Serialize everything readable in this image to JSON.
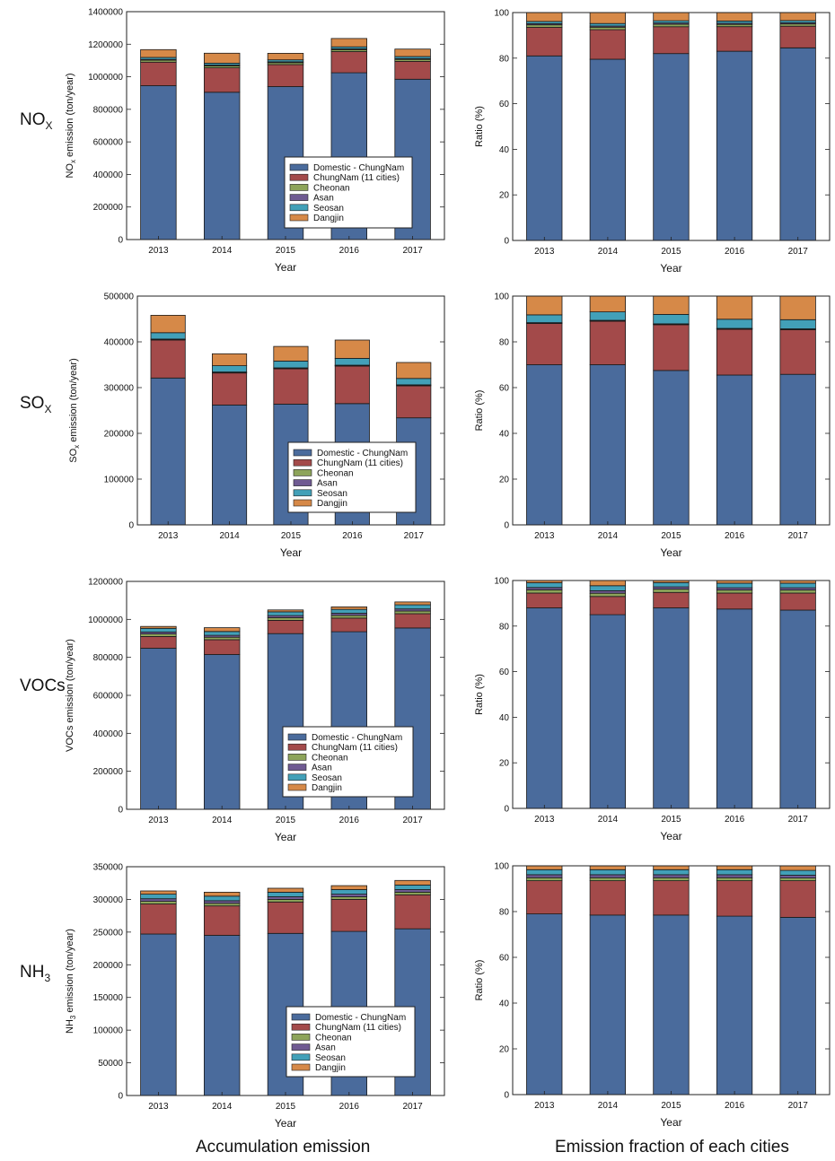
{
  "colors": {
    "Domestic - ChungNam": "#4a6b9c",
    "ChungNam (11 cities)": "#a34a4a",
    "Cheonan": "#8da45a",
    "Asan": "#6f5a92",
    "Seosan": "#42a0b8",
    "Dangjin": "#d68948",
    "frame": "#222222"
  },
  "captions": {
    "left": "Accumulation emission",
    "right": "Emission fraction of each cities"
  },
  "chart_data": [
    {
      "id": "nox-emission",
      "type": "bar",
      "stacked": true,
      "row_label": "NO",
      "row_label_sub": "X",
      "title": "",
      "xlabel": "Year",
      "ylabel": "NO",
      "ylabel_sub": "x",
      "ylabel_rest": " emission (ton/year)",
      "ylim": [
        0,
        1400000
      ],
      "yticks": [
        0,
        200000,
        400000,
        600000,
        800000,
        1000000,
        1200000,
        1400000
      ],
      "legend_position": "bottom-right",
      "legend_entries": [
        "Domestic - ChungNam",
        "ChungNam (11 cities)",
        "Cheonan",
        "Asan",
        "Seosan",
        "Dangjin"
      ],
      "categories": [
        "2013",
        "2014",
        "2015",
        "2016",
        "2017"
      ],
      "series": [
        {
          "name": "Domestic - ChungNam",
          "values": [
            945000,
            905000,
            940000,
            1025000,
            985000
          ]
        },
        {
          "name": "ChungNam (11 cities)",
          "values": [
            145000,
            150000,
            135000,
            130000,
            110000
          ]
        },
        {
          "name": "Cheonan",
          "values": [
            12000,
            12000,
            12000,
            12000,
            12000
          ]
        },
        {
          "name": "Asan",
          "values": [
            5000,
            5000,
            5000,
            5000,
            5000
          ]
        },
        {
          "name": "Seosan",
          "values": [
            12000,
            12000,
            12000,
            12000,
            12000
          ]
        },
        {
          "name": "Dangjin",
          "values": [
            48000,
            61000,
            40000,
            51000,
            46000
          ]
        }
      ]
    },
    {
      "id": "nox-ratio",
      "type": "bar",
      "stacked": true,
      "title": "",
      "xlabel": "Year",
      "ylabel": "Ratio (%)",
      "ylim": [
        0,
        100
      ],
      "yticks": [
        0,
        20,
        40,
        60,
        80,
        100
      ],
      "categories": [
        "2013",
        "2014",
        "2015",
        "2016",
        "2017"
      ],
      "series": [
        {
          "name": "Domestic - ChungNam",
          "values": [
            81,
            79.5,
            82,
            83,
            84.5
          ]
        },
        {
          "name": "ChungNam (11 cities)",
          "values": [
            12.5,
            13,
            11.8,
            10.8,
            9.5
          ]
        },
        {
          "name": "Cheonan",
          "values": [
            1.1,
            1.1,
            1.1,
            1,
            1
          ]
        },
        {
          "name": "Asan",
          "values": [
            0.5,
            0.5,
            0.5,
            0.5,
            0.5
          ]
        },
        {
          "name": "Seosan",
          "values": [
            1,
            1.1,
            1,
            1,
            1
          ]
        },
        {
          "name": "Dangjin",
          "values": [
            3.9,
            4.8,
            3.6,
            3.7,
            3.5
          ]
        }
      ]
    },
    {
      "id": "sox-emission",
      "type": "bar",
      "stacked": true,
      "row_label": "SO",
      "row_label_sub": "X",
      "title": "",
      "xlabel": "Year",
      "ylabel": "SO",
      "ylabel_sub": "x",
      "ylabel_rest": " emission (ton/year)",
      "ylim": [
        0,
        500000
      ],
      "yticks": [
        0,
        100000,
        200000,
        300000,
        400000,
        500000
      ],
      "legend_position": "bottom-right",
      "legend_entries": [
        "Domestic - ChungNam",
        "ChungNam (11 cities)",
        "Cheonan",
        "Asan",
        "Seosan",
        "Dangjin"
      ],
      "categories": [
        "2013",
        "2014",
        "2015",
        "2016",
        "2017"
      ],
      "series": [
        {
          "name": "Domestic - ChungNam",
          "values": [
            321000,
            262000,
            264000,
            265000,
            234000
          ]
        },
        {
          "name": "ChungNam (11 cities)",
          "values": [
            83000,
            70000,
            77000,
            82000,
            70000
          ]
        },
        {
          "name": "Cheonan",
          "values": [
            1000,
            1000,
            1000,
            1000,
            1000
          ]
        },
        {
          "name": "Asan",
          "values": [
            1000,
            1000,
            1000,
            1000,
            1000
          ]
        },
        {
          "name": "Seosan",
          "values": [
            14000,
            14000,
            15000,
            15000,
            14000
          ]
        },
        {
          "name": "Dangjin",
          "values": [
            38000,
            26000,
            32000,
            40000,
            35000
          ]
        }
      ]
    },
    {
      "id": "sox-ratio",
      "type": "bar",
      "stacked": true,
      "title": "",
      "xlabel": "Year",
      "ylabel": "Ratio (%)",
      "ylim": [
        0,
        100
      ],
      "yticks": [
        0,
        20,
        40,
        60,
        80,
        100
      ],
      "categories": [
        "2013",
        "2014",
        "2015",
        "2016",
        "2017"
      ],
      "series": [
        {
          "name": "Domestic - ChungNam",
          "values": [
            70,
            70,
            67.5,
            65.5,
            65.8
          ]
        },
        {
          "name": "ChungNam (11 cities)",
          "values": [
            18,
            19,
            20,
            20,
            19.5
          ]
        },
        {
          "name": "Cheonan",
          "values": [
            0.2,
            0.2,
            0.2,
            0.2,
            0.2
          ]
        },
        {
          "name": "Asan",
          "values": [
            0.2,
            0.2,
            0.2,
            0.2,
            0.2
          ]
        },
        {
          "name": "Seosan",
          "values": [
            3.4,
            3.7,
            4.1,
            4,
            4
          ]
        },
        {
          "name": "Dangjin",
          "values": [
            8.2,
            6.9,
            8,
            10.1,
            10.3
          ]
        }
      ]
    },
    {
      "id": "vocs-emission",
      "type": "bar",
      "stacked": true,
      "row_label": "VOCs",
      "title": "",
      "xlabel": "Year",
      "ylabel": "VOCs emission (ton/year)",
      "ylim": [
        0,
        1200000
      ],
      "yticks": [
        0,
        200000,
        400000,
        600000,
        800000,
        1000000,
        1200000
      ],
      "legend_position": "bottom-right",
      "legend_entries": [
        "Domestic - ChungNam",
        "ChungNam (11 cities)",
        "Cheonan",
        "Asan",
        "Seosan",
        "Dangjin"
      ],
      "categories": [
        "2013",
        "2014",
        "2015",
        "2016",
        "2017"
      ],
      "series": [
        {
          "name": "Domestic - ChungNam",
          "values": [
            848000,
            815000,
            925000,
            935000,
            955000
          ]
        },
        {
          "name": "ChungNam (11 cities)",
          "values": [
            62000,
            78000,
            70000,
            72000,
            75000
          ]
        },
        {
          "name": "Cheonan",
          "values": [
            13000,
            13000,
            14000,
            14000,
            14000
          ]
        },
        {
          "name": "Asan",
          "values": [
            10000,
            10000,
            11000,
            11000,
            11000
          ]
        },
        {
          "name": "Seosan",
          "values": [
            20000,
            20000,
            20000,
            21000,
            22000
          ]
        },
        {
          "name": "Dangjin",
          "values": [
            10000,
            20000,
            10000,
            13000,
            15000
          ]
        }
      ]
    },
    {
      "id": "vocs-ratio",
      "type": "bar",
      "stacked": true,
      "title": "",
      "xlabel": "Year",
      "ylabel": "Ratio (%)",
      "ylim": [
        0,
        100
      ],
      "yticks": [
        0,
        20,
        40,
        60,
        80,
        100
      ],
      "categories": [
        "2013",
        "2014",
        "2015",
        "2016",
        "2017"
      ],
      "series": [
        {
          "name": "Domestic - ChungNam",
          "values": [
            88,
            85,
            88,
            87.5,
            87
          ]
        },
        {
          "name": "ChungNam (11 cities)",
          "values": [
            6.5,
            8,
            6.8,
            7,
            7.5
          ]
        },
        {
          "name": "Cheonan",
          "values": [
            1.4,
            1.4,
            1.4,
            1.3,
            1.3
          ]
        },
        {
          "name": "Asan",
          "values": [
            1,
            1.1,
            1,
            1,
            1
          ]
        },
        {
          "name": "Seosan",
          "values": [
            2.1,
            2.2,
            1.9,
            2,
            2
          ]
        },
        {
          "name": "Dangjin",
          "values": [
            1,
            2.3,
            0.9,
            1.2,
            1.2
          ]
        }
      ]
    },
    {
      "id": "nh3-emission",
      "type": "bar",
      "stacked": true,
      "row_label": "NH",
      "row_label_sub": "3",
      "title": "",
      "xlabel": "Year",
      "ylabel": "NH",
      "ylabel_sub": "3",
      "ylabel_rest": " emission (ton/year)",
      "ylim": [
        0,
        350000
      ],
      "yticks": [
        0,
        50000,
        100000,
        150000,
        200000,
        250000,
        300000,
        350000
      ],
      "legend_position": "bottom-right",
      "legend_entries": [
        "Domestic - ChungNam",
        "ChungNam (11 cities)",
        "Cheonan",
        "Asan",
        "Seosan",
        "Dangjin"
      ],
      "categories": [
        "2013",
        "2014",
        "2015",
        "2016",
        "2017"
      ],
      "series": [
        {
          "name": "Domestic - ChungNam",
          "values": [
            247000,
            245000,
            248000,
            251000,
            255000
          ]
        },
        {
          "name": "ChungNam (11 cities)",
          "values": [
            46000,
            45000,
            48000,
            49000,
            52000
          ]
        },
        {
          "name": "Cheonan",
          "values": [
            4000,
            4000,
            4000,
            4000,
            4000
          ]
        },
        {
          "name": "Asan",
          "values": [
            4000,
            4000,
            4000,
            4000,
            4000
          ]
        },
        {
          "name": "Seosan",
          "values": [
            7000,
            7000,
            7000,
            7000,
            7000
          ]
        },
        {
          "name": "Dangjin",
          "values": [
            5000,
            6000,
            6000,
            6000,
            7000
          ]
        }
      ]
    },
    {
      "id": "nh3-ratio",
      "type": "bar",
      "stacked": true,
      "title": "",
      "xlabel": "Year",
      "ylabel": "Ratio (%)",
      "ylim": [
        0,
        100
      ],
      "yticks": [
        0,
        20,
        40,
        60,
        80,
        100
      ],
      "categories": [
        "2013",
        "2014",
        "2015",
        "2016",
        "2017"
      ],
      "series": [
        {
          "name": "Domestic - ChungNam",
          "values": [
            79,
            78.5,
            78.5,
            78,
            77.5
          ]
        },
        {
          "name": "ChungNam (11 cities)",
          "values": [
            14.5,
            15,
            15,
            15.5,
            16
          ]
        },
        {
          "name": "Cheonan",
          "values": [
            1.3,
            1.3,
            1.3,
            1.3,
            1.2
          ]
        },
        {
          "name": "Asan",
          "values": [
            1.3,
            1.3,
            1.3,
            1.3,
            1.2
          ]
        },
        {
          "name": "Seosan",
          "values": [
            2.2,
            2.2,
            2.2,
            2.2,
            2.1
          ]
        },
        {
          "name": "Dangjin",
          "values": [
            1.7,
            1.7,
            1.7,
            1.7,
            2
          ]
        }
      ]
    }
  ]
}
